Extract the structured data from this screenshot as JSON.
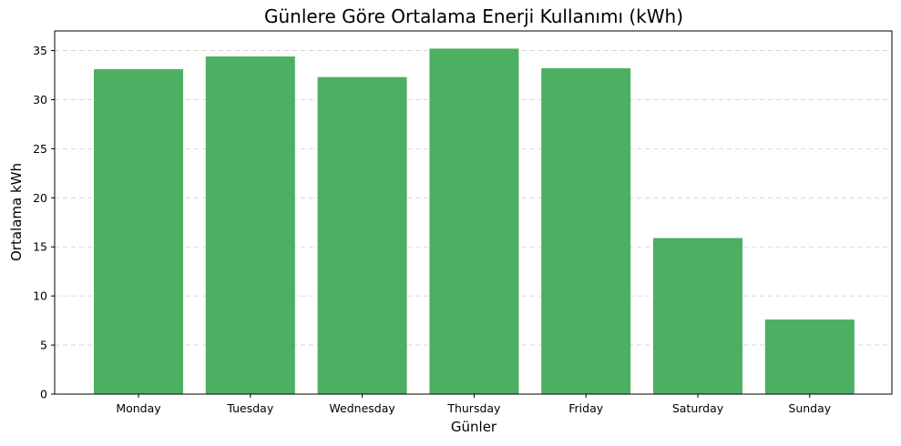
{
  "chart_data": {
    "type": "bar",
    "title": "Günlere Göre Ortalama Enerji Kullanımı (kWh)",
    "xlabel": "Günler",
    "ylabel": "Ortalama kWh",
    "categories": [
      "Monday",
      "Tuesday",
      "Wednesday",
      "Thursday",
      "Friday",
      "Saturday",
      "Sunday"
    ],
    "values": [
      33.1,
      34.4,
      32.3,
      35.2,
      33.2,
      15.9,
      7.6
    ],
    "ylim": [
      0,
      37
    ],
    "yticks": [
      0,
      5,
      10,
      15,
      20,
      25,
      30,
      35
    ],
    "grid": "y-axis dashed",
    "colors": {
      "bar": "#4caf62"
    }
  }
}
